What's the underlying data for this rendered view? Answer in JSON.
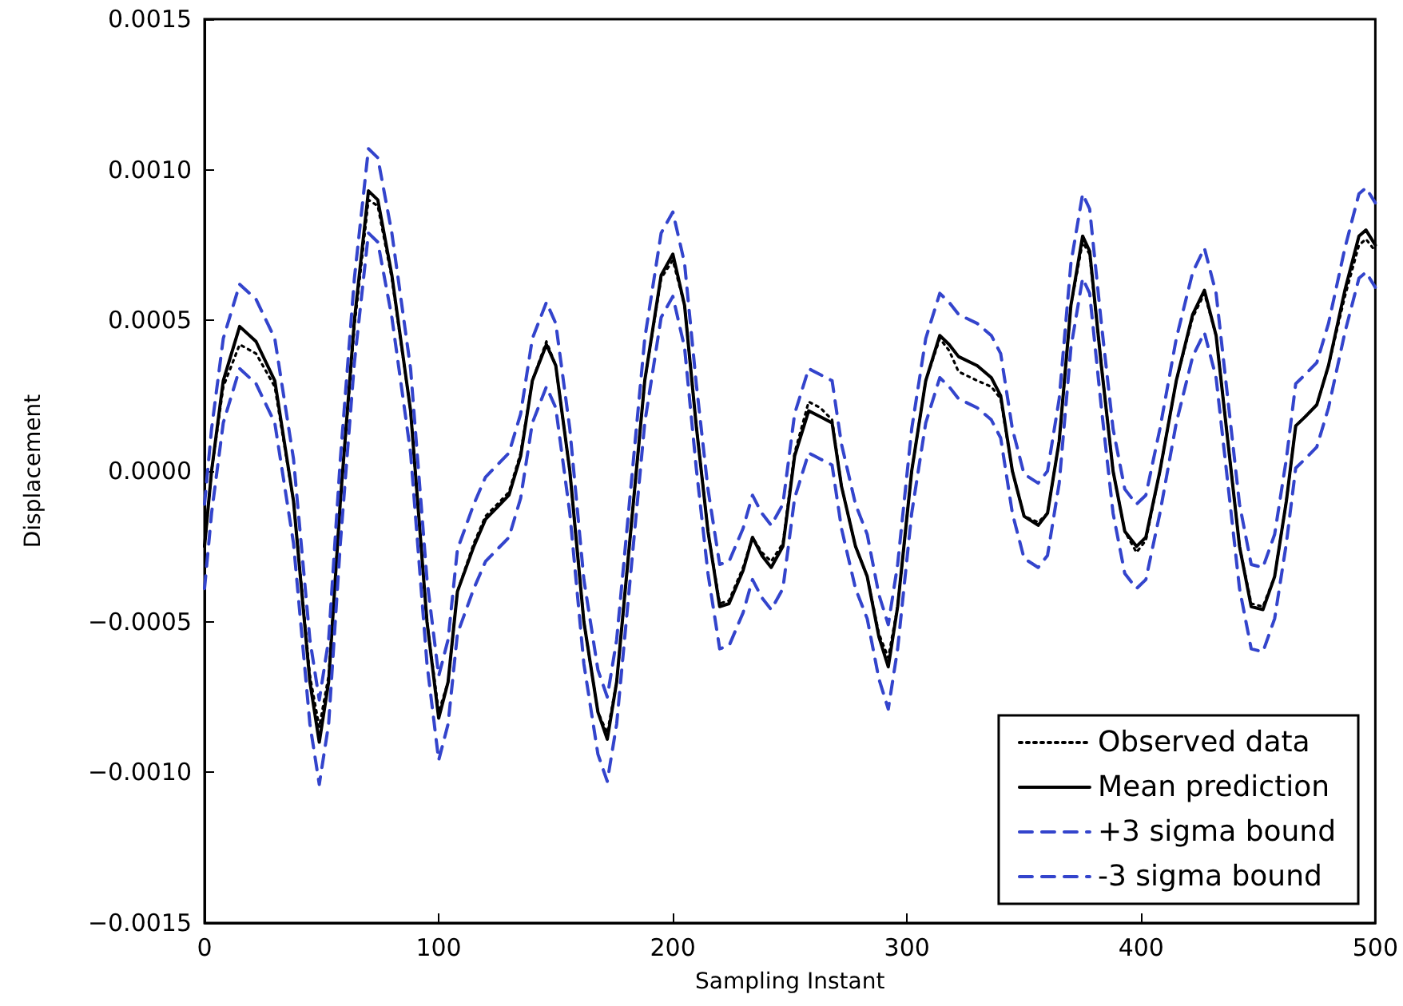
{
  "chart_data": {
    "type": "line",
    "xlabel": "Sampling Instant",
    "ylabel": "Displacement",
    "x": [
      0,
      3,
      8,
      15,
      22,
      30,
      38,
      45,
      49,
      53,
      58,
      64,
      70,
      74,
      80,
      88,
      95,
      100,
      104,
      108,
      115,
      120,
      125,
      130,
      135,
      140,
      146,
      150,
      156,
      162,
      168,
      172,
      176,
      182,
      188,
      195,
      200,
      205,
      210,
      215,
      220,
      224,
      230,
      234,
      238,
      242,
      247,
      252,
      258,
      263,
      268,
      272,
      278,
      283,
      288,
      292,
      296,
      302,
      308,
      314,
      318,
      322,
      330,
      336,
      340,
      345,
      350,
      356,
      360,
      365,
      370,
      375,
      378,
      383,
      388,
      393,
      398,
      402,
      408,
      415,
      422,
      427,
      432,
      437,
      442,
      447,
      452,
      457,
      462,
      466,
      470,
      475,
      480,
      487,
      493,
      496,
      500
    ],
    "series": [
      {
        "name": "Observed data",
        "color": "#000000",
        "line_style": "dotted",
        "values": [
          -0.00025,
          0,
          0.00028,
          0.00042,
          0.00039,
          0.00028,
          -0.0001,
          -0.00068,
          -0.00085,
          -0.00068,
          -0.0001,
          0.00048,
          0.0009,
          0.00088,
          0.00064,
          0.0002,
          -0.0005,
          -0.0008,
          -0.0007,
          -0.0004,
          -0.00024,
          -0.00015,
          -0.00011,
          -7e-05,
          6e-05,
          0.0003,
          0.00043,
          0.00035,
          0,
          -0.0005,
          -0.0008,
          -0.00087,
          -0.0007,
          -0.0002,
          0.0003,
          0.00064,
          0.0007,
          0.00055,
          0.00015,
          -0.0002,
          -0.00044,
          -0.00043,
          -0.00032,
          -0.00022,
          -0.00027,
          -0.0003,
          -0.00024,
          6e-05,
          0.00023,
          0.00021,
          0.00017,
          -5e-05,
          -0.00025,
          -0.00035,
          -0.00054,
          -0.00062,
          -0.00045,
          0,
          0.0003,
          0.00044,
          0.0004,
          0.00033,
          0.0003,
          0.00028,
          0.00024,
          0,
          -0.00015,
          -0.00017,
          -0.00014,
          0.0001,
          0.00055,
          0.00076,
          0.00072,
          0.00035,
          0,
          -0.0002,
          -0.00027,
          -0.00023,
          0,
          0.0003,
          0.00051,
          0.00059,
          0.00045,
          0.0001,
          -0.00025,
          -0.00044,
          -0.00045,
          -0.00035,
          -0.0001,
          0.00015,
          0.00018,
          0.00022,
          0.00035,
          0.00058,
          0.00075,
          0.00077,
          0.00073
        ]
      },
      {
        "name": "Mean prediction",
        "color": "#000000",
        "line_style": "solid",
        "values": [
          -0.00025,
          0,
          0.0003,
          0.00048,
          0.00043,
          0.0003,
          -0.0001,
          -0.0007,
          -0.0009,
          -0.0007,
          -0.0001,
          0.0005,
          0.00093,
          0.0009,
          0.00065,
          0.0002,
          -0.0005,
          -0.00082,
          -0.0007,
          -0.0004,
          -0.00025,
          -0.00016,
          -0.00012,
          -8e-05,
          5e-05,
          0.0003,
          0.00042,
          0.00035,
          0,
          -0.0005,
          -0.0008,
          -0.00089,
          -0.0007,
          -0.0002,
          0.0003,
          0.00065,
          0.00072,
          0.00055,
          0.00015,
          -0.0002,
          -0.00045,
          -0.00044,
          -0.00033,
          -0.00022,
          -0.00028,
          -0.00032,
          -0.00025,
          5e-05,
          0.0002,
          0.00018,
          0.00016,
          -5e-05,
          -0.00025,
          -0.00035,
          -0.00055,
          -0.00065,
          -0.00045,
          0,
          0.0003,
          0.00045,
          0.00042,
          0.00038,
          0.00035,
          0.00031,
          0.00025,
          0,
          -0.00015,
          -0.00018,
          -0.00014,
          0.0001,
          0.00055,
          0.00078,
          0.00073,
          0.00035,
          0,
          -0.0002,
          -0.00025,
          -0.00022,
          0,
          0.0003,
          0.00052,
          0.0006,
          0.00045,
          0.0001,
          -0.00025,
          -0.00045,
          -0.00046,
          -0.00035,
          -0.0001,
          0.00015,
          0.00018,
          0.00022,
          0.00035,
          0.0006,
          0.00078,
          0.0008,
          0.00075
        ]
      },
      {
        "name": "+3 sigma bound",
        "color": "#3344cc",
        "line_style": "dashed",
        "values": [
          -0.00011,
          0.00014,
          0.00044,
          0.00062,
          0.00057,
          0.00044,
          4e-05,
          -0.00056,
          -0.00076,
          -0.00056,
          4e-05,
          0.00064,
          0.00107,
          0.00104,
          0.00079,
          0.00034,
          -0.00036,
          -0.00068,
          -0.00056,
          -0.00026,
          -0.00011,
          -2e-05,
          2e-05,
          6e-05,
          0.00019,
          0.00044,
          0.00056,
          0.00049,
          0.00014,
          -0.00036,
          -0.00066,
          -0.00075,
          -0.00056,
          -6e-05,
          0.00044,
          0.00079,
          0.00086,
          0.00069,
          0.00029,
          -6e-05,
          -0.00031,
          -0.0003,
          -0.00019,
          -8e-05,
          -0.00014,
          -0.00018,
          -0.00011,
          0.00019,
          0.00034,
          0.00032,
          0.0003,
          9e-05,
          -0.00011,
          -0.00021,
          -0.00041,
          -0.00051,
          -0.00031,
          0.00014,
          0.00044,
          0.00059,
          0.00056,
          0.00052,
          0.00049,
          0.00045,
          0.00039,
          0.00014,
          -1e-05,
          -4e-05,
          0,
          0.00024,
          0.00069,
          0.00092,
          0.00087,
          0.00049,
          0.00014,
          -6e-05,
          -0.00011,
          -8e-05,
          0.00014,
          0.00044,
          0.00066,
          0.00074,
          0.00059,
          0.00024,
          -0.00011,
          -0.00031,
          -0.00032,
          -0.00021,
          4e-05,
          0.00029,
          0.00032,
          0.00036,
          0.00049,
          0.00074,
          0.00092,
          0.00094,
          0.00089
        ]
      },
      {
        "name": "-3 sigma bound",
        "color": "#3344cc",
        "line_style": "dashed",
        "values": [
          -0.00039,
          -0.00014,
          0.00016,
          0.00034,
          0.00029,
          0.00016,
          -0.00024,
          -0.00084,
          -0.00104,
          -0.00084,
          -0.00024,
          0.00036,
          0.00079,
          0.00076,
          0.00051,
          6e-05,
          -0.00064,
          -0.00096,
          -0.00084,
          -0.00054,
          -0.00039,
          -0.0003,
          -0.00026,
          -0.00022,
          -9e-05,
          0.00016,
          0.00028,
          0.00021,
          -0.00014,
          -0.00064,
          -0.00094,
          -0.00103,
          -0.00084,
          -0.00034,
          0.00016,
          0.00051,
          0.00058,
          0.00041,
          1e-05,
          -0.00034,
          -0.00059,
          -0.00058,
          -0.00047,
          -0.00036,
          -0.00042,
          -0.00046,
          -0.00039,
          -9e-05,
          6e-05,
          4e-05,
          2e-05,
          -0.00019,
          -0.00039,
          -0.00049,
          -0.00069,
          -0.00079,
          -0.00059,
          -0.00014,
          0.00016,
          0.00031,
          0.00028,
          0.00024,
          0.00021,
          0.00017,
          0.00011,
          -0.00014,
          -0.00029,
          -0.00032,
          -0.00028,
          -4e-05,
          0.00041,
          0.00064,
          0.00059,
          0.00021,
          -0.00014,
          -0.00034,
          -0.00039,
          -0.00036,
          -0.00014,
          0.00016,
          0.00038,
          0.00046,
          0.00031,
          -4e-05,
          -0.00039,
          -0.00059,
          -0.0006,
          -0.00049,
          -0.00024,
          1e-05,
          4e-05,
          8e-05,
          0.00021,
          0.00046,
          0.00064,
          0.00066,
          0.00061
        ]
      }
    ],
    "xlim": [
      0,
      500
    ],
    "xticks": [
      0,
      100,
      200,
      300,
      400,
      500
    ],
    "ylim": [
      -0.0015,
      0.0015
    ],
    "yticks": [
      {
        "value": -0.0015,
        "label": "−0.0015"
      },
      {
        "value": -0.001,
        "label": "−0.0010"
      },
      {
        "value": -0.0005,
        "label": "−0.0005"
      },
      {
        "value": 0,
        "label": "0.0000"
      },
      {
        "value": 0.0005,
        "label": "0.0005"
      },
      {
        "value": 0.001,
        "label": "0.0010"
      },
      {
        "value": 0.0015,
        "label": "0.0015"
      }
    ],
    "legend": "bottom right",
    "grid": false
  }
}
